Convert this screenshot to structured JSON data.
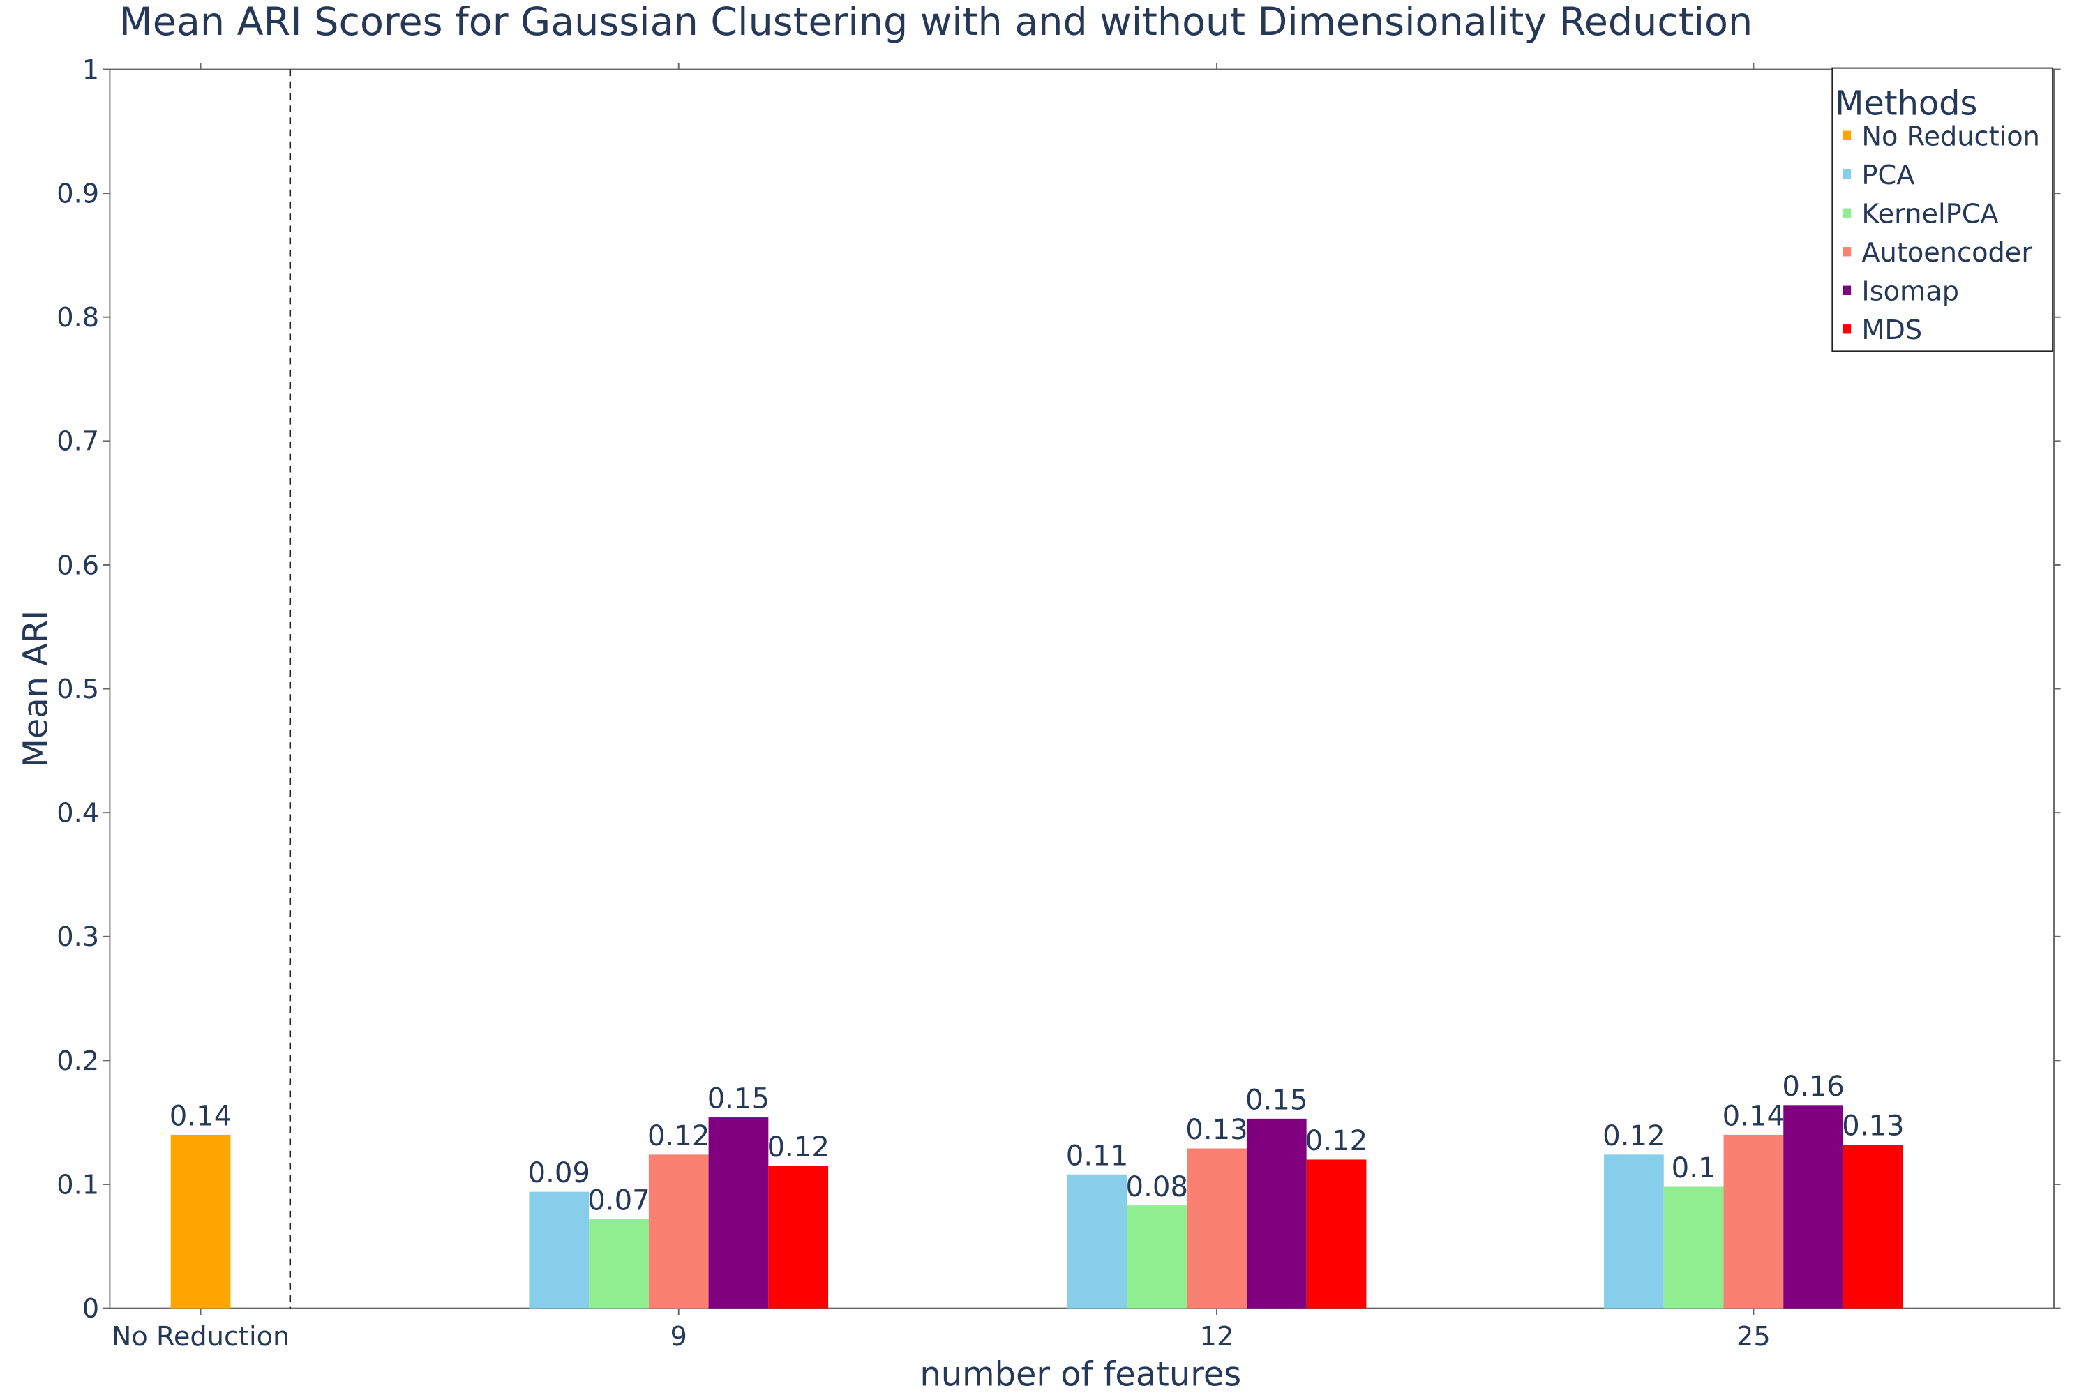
{
  "chart_data": {
    "type": "bar",
    "title": "Mean ARI Scores for Gaussian Clustering with and without Dimensionality Reduction",
    "x_label": "number of features",
    "y_label": "Mean ARI",
    "categories": [
      "No Reduction",
      "9",
      "12",
      "25"
    ],
    "series": [
      {
        "name": "No Reduction",
        "color": "#ffa500",
        "values": [
          0.14,
          null,
          null,
          null
        ],
        "value_labels": [
          "0.14",
          null,
          null,
          null
        ]
      },
      {
        "name": "PCA",
        "color": "#87ceeb",
        "values": [
          null,
          0.094,
          0.108,
          0.124
        ],
        "value_labels": [
          null,
          "0.09",
          "0.11",
          "0.12"
        ]
      },
      {
        "name": "KernelPCA",
        "color": "#90ee90",
        "values": [
          null,
          0.072,
          0.083,
          0.098
        ],
        "value_labels": [
          null,
          "0.07",
          "0.08",
          "0.1"
        ]
      },
      {
        "name": "Autoencoder",
        "color": "#fa8072",
        "values": [
          null,
          0.124,
          0.129,
          0.14
        ],
        "value_labels": [
          null,
          "0.12",
          "0.13",
          "0.14"
        ]
      },
      {
        "name": "Isomap",
        "color": "#800080",
        "values": [
          null,
          0.154,
          0.153,
          0.164
        ],
        "value_labels": [
          null,
          "0.15",
          "0.15",
          "0.16"
        ]
      },
      {
        "name": "MDS",
        "color": "#ff0000",
        "values": [
          null,
          0.115,
          0.12,
          0.132
        ],
        "value_labels": [
          null,
          "0.12",
          "0.12",
          "0.13"
        ]
      }
    ],
    "legend_title": "Methods",
    "legend": "upper right",
    "ylim": [
      0,
      1
    ],
    "yticks": [
      0,
      0.1,
      0.2,
      0.3,
      0.4,
      0.5,
      0.6,
      0.7,
      0.8,
      0.9,
      1
    ]
  }
}
